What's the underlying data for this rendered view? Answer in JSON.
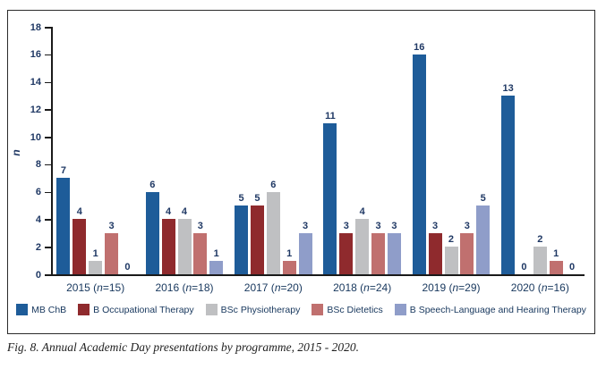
{
  "figure": {
    "caption": "Fig. 8. Annual Academic Day presentations by programme, 2015 - 2020."
  },
  "chart_data": {
    "type": "bar",
    "title": "",
    "xlabel": "",
    "ylabel": "n",
    "ylim": [
      0,
      18
    ],
    "ytick_step": 2,
    "yticks": [
      0,
      2,
      4,
      6,
      8,
      10,
      12,
      14,
      16,
      18
    ],
    "grid": false,
    "legend_position": "bottom",
    "value_labels": true,
    "text_color": "#1f3864",
    "groups": [
      {
        "year": "2015",
        "n": "15",
        "label": "2015 (n=15)"
      },
      {
        "year": "2016",
        "n": "18",
        "label": "2016 (n=18)"
      },
      {
        "year": "2017",
        "n": "20",
        "label": "2017 (n=20)"
      },
      {
        "year": "2018",
        "n": "24",
        "label": "2018 (n=24)"
      },
      {
        "year": "2019",
        "n": "29",
        "label": "2019 (n=29)"
      },
      {
        "year": "2020",
        "n": "16",
        "label": "2020 (n=16)"
      }
    ],
    "series": [
      {
        "name": "MB ChB",
        "color": "#1e5c99",
        "values": [
          7,
          6,
          5,
          11,
          16,
          13
        ]
      },
      {
        "name": "B Occupational Therapy",
        "color": "#8f2a2d",
        "values": [
          4,
          4,
          5,
          3,
          3,
          0
        ]
      },
      {
        "name": "BSc Physiotherapy",
        "color": "#bfc0c2",
        "values": [
          1,
          4,
          6,
          4,
          2,
          2
        ]
      },
      {
        "name": "BSc Dietetics",
        "color": "#c0706f",
        "values": [
          3,
          3,
          1,
          3,
          3,
          1
        ]
      },
      {
        "name": "B Speech-Language and Hearing Therapy",
        "color": "#8f9dc9",
        "values": [
          0,
          1,
          3,
          3,
          5,
          0
        ]
      }
    ]
  }
}
